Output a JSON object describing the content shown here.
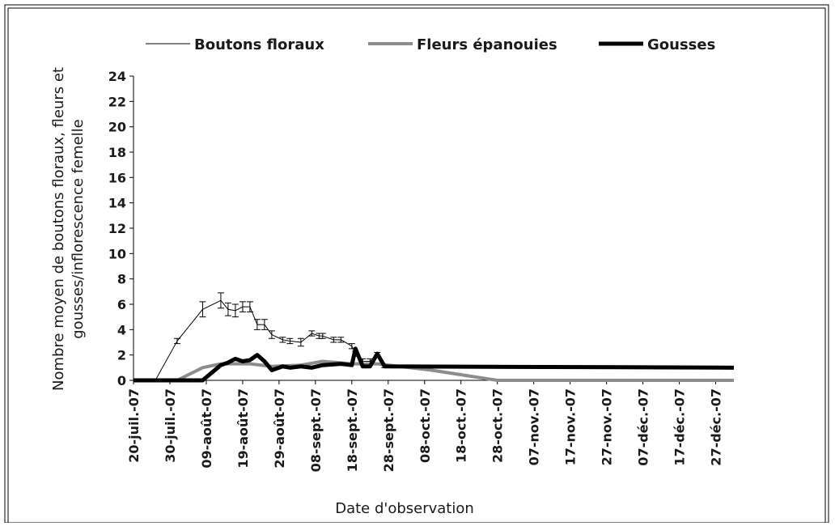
{
  "chart_data": {
    "type": "line",
    "y_label": [
      "Nombre moyen de boutons floraux, fleurs et",
      "gousses/inflorescence femelle"
    ],
    "x_label": "Date d'observation",
    "legend": "top",
    "xlim": [
      "2007-07-20",
      "2008-01-01"
    ],
    "ylim": [
      0,
      24
    ],
    "yticks": [
      0,
      2,
      4,
      6,
      8,
      10,
      12,
      14,
      16,
      18,
      20,
      22,
      24
    ],
    "xticks": [
      {
        "value": "2007-07-20",
        "label": "20-juil.-07"
      },
      {
        "value": "2007-07-30",
        "label": "30-juil.-07"
      },
      {
        "value": "2007-08-09",
        "label": "09-août-07"
      },
      {
        "value": "2007-08-19",
        "label": "19-août-07"
      },
      {
        "value": "2007-08-29",
        "label": "29-août-07"
      },
      {
        "value": "2007-09-08",
        "label": "08-sept.-07"
      },
      {
        "value": "2007-09-18",
        "label": "18-sept.-07"
      },
      {
        "value": "2007-09-28",
        "label": "28-sept.-07"
      },
      {
        "value": "2007-10-08",
        "label": "08-oct.-07"
      },
      {
        "value": "2007-10-18",
        "label": "18-oct.-07"
      },
      {
        "value": "2007-10-28",
        "label": "28-oct.-07"
      },
      {
        "value": "2007-11-07",
        "label": "07-nov.-07"
      },
      {
        "value": "2007-11-17",
        "label": "17-nov.-07"
      },
      {
        "value": "2007-11-27",
        "label": "27-nov.-07"
      },
      {
        "value": "2007-12-07",
        "label": "07-déc.-07"
      },
      {
        "value": "2007-12-17",
        "label": "17-déc.-07"
      },
      {
        "value": "2007-12-27",
        "label": "27-déc.-07"
      }
    ],
    "series": [
      {
        "name": "Boutons floraux",
        "color": "#000000",
        "width": 1,
        "x": [
          "2007-07-20",
          "2007-07-26",
          "2007-08-01",
          "2007-08-08",
          "2007-08-13",
          "2007-08-15",
          "2007-08-17",
          "2007-08-19",
          "2007-08-21",
          "2007-08-23",
          "2007-08-25",
          "2007-08-27",
          "2007-08-30",
          "2007-09-01",
          "2007-09-04",
          "2007-09-07",
          "2007-09-09",
          "2007-09-10",
          "2007-09-13",
          "2007-09-15",
          "2007-09-18",
          "2007-09-19",
          "2007-09-21",
          "2007-09-23",
          "2007-09-25",
          "2007-09-27"
        ],
        "values": [
          0,
          0,
          3.1,
          5.6,
          6.3,
          5.6,
          5.5,
          5.8,
          5.8,
          4.4,
          4.4,
          3.6,
          3.2,
          3.1,
          3.0,
          3.7,
          3.5,
          3.5,
          3.2,
          3.2,
          2.7,
          2.1,
          1.5,
          1.5,
          2.0,
          1.1
        ],
        "errors": [
          null,
          null,
          0.2,
          0.6,
          0.6,
          0.5,
          0.5,
          0.4,
          0.4,
          0.4,
          0.4,
          0.3,
          0.2,
          0.2,
          0.3,
          0.2,
          0.2,
          0.2,
          0.2,
          0.2,
          0.2,
          0.2,
          0.2,
          0.2,
          0.2,
          0.1
        ]
      },
      {
        "name": "Fleurs épanouies",
        "color": "#8c8c8c",
        "width": 4,
        "x": [
          "2007-07-20",
          "2007-08-01",
          "2007-08-08",
          "2007-08-13",
          "2007-08-21",
          "2007-08-27",
          "2007-09-04",
          "2007-09-10",
          "2007-09-18",
          "2007-09-25",
          "2007-10-01",
          "2007-10-10",
          "2007-10-19",
          "2007-10-28",
          "2008-01-01"
        ],
        "values": [
          0,
          0,
          1.0,
          1.3,
          1.3,
          1.1,
          1.2,
          1.5,
          1.3,
          1.3,
          1.1,
          0.8,
          0.4,
          0,
          0
        ]
      },
      {
        "name": "Gousses",
        "color": "#000000",
        "width": 5,
        "x": [
          "2007-07-20",
          "2007-08-08",
          "2007-08-13",
          "2007-08-15",
          "2007-08-17",
          "2007-08-19",
          "2007-08-21",
          "2007-08-23",
          "2007-08-25",
          "2007-08-27",
          "2007-08-30",
          "2007-09-01",
          "2007-09-04",
          "2007-09-07",
          "2007-09-10",
          "2007-09-15",
          "2007-09-18",
          "2007-09-19",
          "2007-09-21",
          "2007-09-23",
          "2007-09-25",
          "2007-09-27",
          "2008-01-01"
        ],
        "values": [
          0,
          0,
          1.2,
          1.4,
          1.7,
          1.5,
          1.6,
          2.0,
          1.5,
          0.8,
          1.1,
          1.0,
          1.1,
          1.0,
          1.2,
          1.3,
          1.2,
          2.5,
          1.1,
          1.1,
          2.1,
          1.1,
          1.0
        ]
      }
    ]
  }
}
